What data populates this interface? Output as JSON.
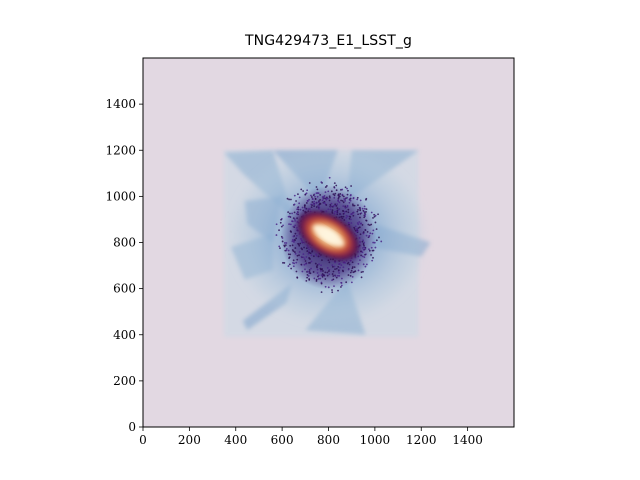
{
  "figure": {
    "title": "TNG429473_E1_LSST_g"
  },
  "chart_data": {
    "type": "heatmap",
    "title": "TNG429473_E1_LSST_g",
    "xlabel": "",
    "ylabel": "",
    "xlim": [
      0,
      1600
    ],
    "ylim": [
      0,
      1600
    ],
    "x_ticks": [
      0,
      200,
      400,
      600,
      800,
      1000,
      1200,
      1400
    ],
    "y_ticks": [
      0,
      200,
      400,
      600,
      800,
      1000,
      1200,
      1400
    ],
    "grid": false,
    "colormap": "twilight-like",
    "background_color": "#e2d8e2",
    "data_region": {
      "x": [
        350,
        1240
      ],
      "y": [
        390,
        1200
      ]
    },
    "core_center": [
      800,
      830
    ],
    "core_color": "#fff4d8",
    "halo_color": "#3a1a6e",
    "diffuse_color": "#6d96c6"
  }
}
